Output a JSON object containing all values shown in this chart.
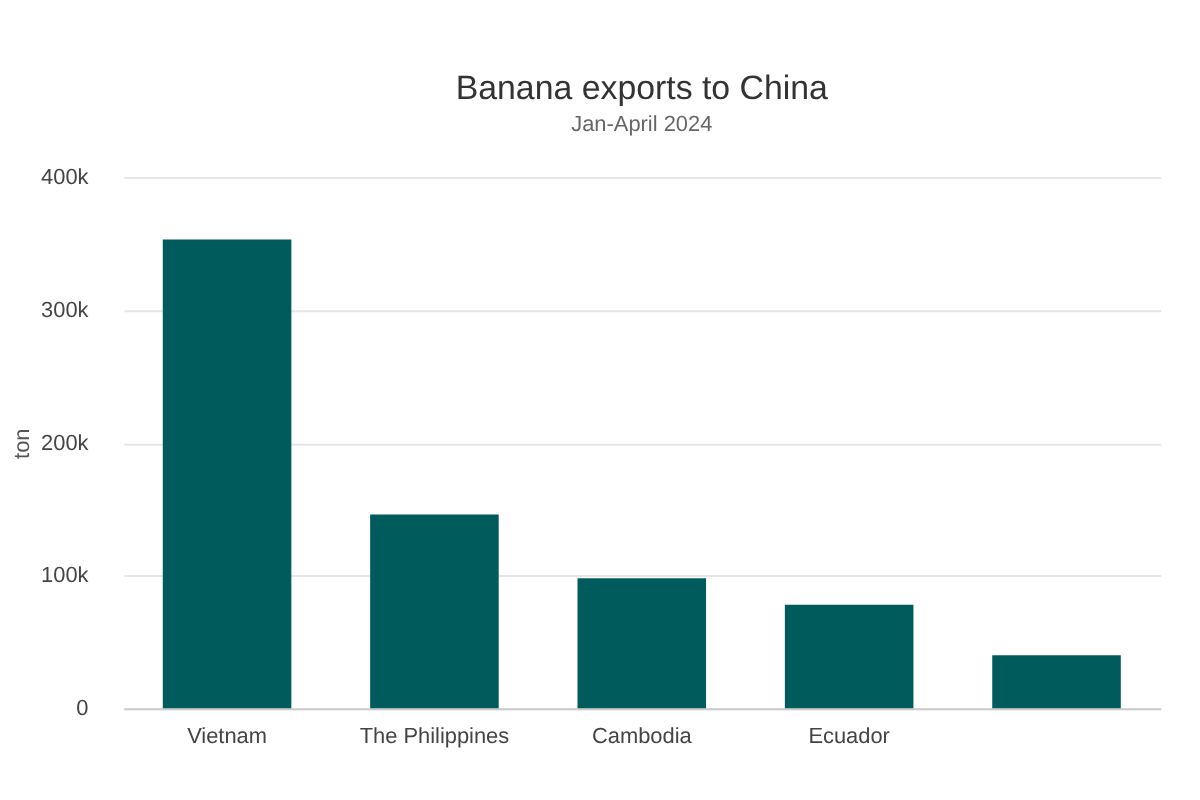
{
  "chart_data": {
    "type": "bar",
    "title": "Banana exports to China",
    "subtitle": "Jan-April 2024",
    "ylabel": "ton",
    "categories": [
      "Vietnam",
      "The Philippines",
      "Cambodia",
      "Ecuador",
      null,
      null
    ],
    "values": [
      353000,
      146000,
      98000,
      78000,
      40000,
      null
    ],
    "color": "#005c5c",
    "ylim": [
      0,
      400000
    ],
    "yticks": [
      {
        "value": 0,
        "label": "0"
      },
      {
        "value": 100000,
        "label": "100k"
      },
      {
        "value": 200000,
        "label": "200k"
      },
      {
        "value": 300000,
        "label": "300k"
      },
      {
        "value": 400000,
        "label": "400k"
      }
    ],
    "grid": "y"
  }
}
